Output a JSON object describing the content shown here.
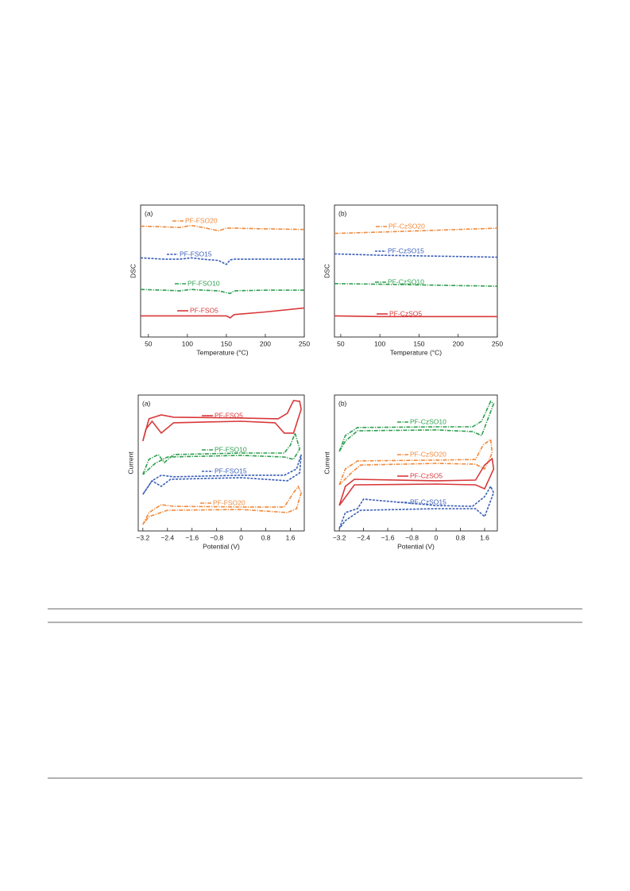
{
  "chart_data": [
    {
      "type": "line",
      "panel_label": "(a)",
      "xlabel": "Temperature (°C)",
      "ylabel": "DSC",
      "xlim": [
        40,
        250
      ],
      "ylim": [
        0,
        100
      ],
      "xticks": [
        50,
        100,
        150,
        200,
        250
      ],
      "series": [
        {
          "name": "PF-FSO20",
          "color": "#f0893a",
          "dash": "dashdot",
          "x": [
            40,
            70,
            90,
            105,
            120,
            140,
            150,
            160,
            200,
            250
          ],
          "values": [
            84,
            83.5,
            83,
            84.5,
            83,
            80.5,
            82.5,
            82.5,
            82,
            81.5
          ]
        },
        {
          "name": "PF-FSO15",
          "color": "#3a5fb8",
          "dash": "dashed",
          "x": [
            40,
            70,
            90,
            105,
            120,
            140,
            150,
            155,
            160,
            200,
            250
          ],
          "values": [
            60,
            59,
            59,
            60,
            59,
            58,
            55,
            58.5,
            59,
            59,
            59
          ]
        },
        {
          "name": "PF-FSO10",
          "color": "#2e9e4f",
          "dash": "dashdot",
          "x": [
            40,
            70,
            90,
            105,
            120,
            140,
            155,
            160,
            200,
            250
          ],
          "values": [
            36,
            35.5,
            35,
            36,
            35.5,
            35,
            33,
            35,
            35.5,
            35.5
          ]
        },
        {
          "name": "PF-FSO5",
          "color": "#d9383a",
          "dash": "solid",
          "x": [
            40,
            70,
            100,
            130,
            150,
            155,
            160,
            200,
            250
          ],
          "values": [
            16,
            16,
            16,
            16,
            16,
            14.5,
            17,
            19,
            22
          ]
        }
      ]
    },
    {
      "type": "line",
      "panel_label": "(b)",
      "xlabel": "Temperature (°C)",
      "ylabel": "DSC",
      "xlim": [
        42,
        250
      ],
      "ylim": [
        0,
        100
      ],
      "xticks": [
        50,
        100,
        150,
        200,
        250
      ],
      "series": [
        {
          "name": "PF-CzSO20",
          "color": "#f0893a",
          "dash": "dashdot",
          "x": [
            42,
            100,
            150,
            200,
            250
          ],
          "values": [
            78.5,
            79.5,
            80.5,
            81.5,
            82.5
          ]
        },
        {
          "name": "PF-CzSO15",
          "color": "#3a5fb8",
          "dash": "dashed",
          "x": [
            42,
            100,
            150,
            200,
            250
          ],
          "values": [
            63,
            62,
            61.5,
            61,
            60.5
          ]
        },
        {
          "name": "PF-CzSO10",
          "color": "#2e9e4f",
          "dash": "dashdot",
          "x": [
            42,
            100,
            150,
            200,
            250
          ],
          "values": [
            40.5,
            40,
            39.5,
            39,
            38.5
          ]
        },
        {
          "name": "PF-CzSO5",
          "color": "#d9383a",
          "dash": "solid",
          "x": [
            42,
            100,
            150,
            200,
            250
          ],
          "values": [
            16,
            15.5,
            15.5,
            15.5,
            15.5
          ]
        }
      ]
    },
    {
      "type": "line",
      "panel_label": "(a)",
      "xlabel": "Potential (V)",
      "ylabel": "Current",
      "xlim": [
        -3.35,
        2.05
      ],
      "ylim": [
        0,
        100
      ],
      "xticks": [
        {
          "value": -3.2,
          "label": "−3.2"
        },
        {
          "value": -2.4,
          "label": "−2.4"
        },
        {
          "value": -1.6,
          "label": "−1.6"
        },
        {
          "value": -0.8,
          "label": "−0.8"
        },
        0,
        0.8,
        1.6
      ],
      "series": [
        {
          "name": "PF-FSO5",
          "color": "#d9383a",
          "dash": "solid",
          "x": [
            -3.2,
            -3.0,
            -2.6,
            -2.2,
            0,
            1.2,
            1.5,
            1.7,
            1.9,
            1.95,
            1.7,
            1.4,
            1.1,
            0,
            -2.2,
            -2.6,
            -2.9,
            -3.1,
            -3.2
          ],
          "values": [
            66.1,
            82.5,
            85.4,
            83.7,
            83.1,
            82.5,
            86.6,
            95.9,
            95.4,
            89.5,
            72.0,
            72.0,
            79.6,
            80.7,
            79.6,
            72.0,
            80.7,
            74.9,
            66.1
          ]
        },
        {
          "name": "PF-FSO10",
          "color": "#2e9e4f",
          "dash": "dashdot",
          "x": [
            -3.2,
            -3.0,
            -2.7,
            -2.5,
            -2.2,
            0,
            1.4,
            1.6,
            1.75,
            1.9,
            1.7,
            1.4,
            0,
            -2.4,
            -2.8,
            -3.2
          ],
          "values": [
            41.5,
            52.7,
            56.2,
            50.3,
            56.2,
            57.3,
            57.3,
            63.2,
            72.0,
            60.3,
            52.7,
            54.4,
            55.6,
            54.4,
            49.7,
            41.5
          ]
        },
        {
          "name": "PF-FSO15",
          "color": "#3a5fb8",
          "dash": "dashed",
          "x": [
            -3.2,
            -2.9,
            -2.6,
            -2.2,
            0,
            1.4,
            1.8,
            1.95,
            1.9,
            1.5,
            0,
            -2.3,
            -2.6,
            -2.9,
            -3.2
          ],
          "values": [
            26.9,
            36.9,
            41.0,
            39.8,
            41.0,
            41.0,
            45.6,
            56.2,
            42.7,
            36.9,
            39.2,
            38.0,
            32.8,
            36.9,
            26.9
          ]
        },
        {
          "name": "PF-FSO20",
          "color": "#f0893a",
          "dash": "dashdot",
          "x": [
            -3.2,
            -3.0,
            -2.6,
            -2.2,
            0,
            1.4,
            1.7,
            1.85,
            1.95,
            1.8,
            1.5,
            0,
            -2.4,
            -3.0,
            -3.2
          ],
          "values": [
            4.7,
            13.5,
            19.3,
            18.1,
            17.6,
            17.6,
            28.1,
            32.8,
            28.1,
            16.4,
            13.5,
            15.8,
            15.2,
            10.5,
            4.7
          ]
        }
      ]
    },
    {
      "type": "line",
      "panel_label": "(b)",
      "xlabel": "Potential (V)",
      "ylabel": "Current",
      "xlim": [
        -3.36,
        2.02
      ],
      "ylim": [
        0,
        100
      ],
      "xticks": [
        {
          "value": -3.2,
          "label": "−3.2"
        },
        {
          "value": -2.4,
          "label": "−2.4"
        },
        {
          "value": -1.6,
          "label": "−1.6"
        },
        {
          "value": -0.8,
          "label": "−0.8"
        },
        0,
        0.8,
        1.6
      ],
      "series": [
        {
          "name": "PF-CzSO10",
          "color": "#2e9e4f",
          "dash": "dashdot",
          "x": [
            -3.2,
            -3.0,
            -2.6,
            0,
            1.2,
            1.5,
            1.8,
            1.9,
            1.5,
            1.2,
            0,
            -2.6,
            -3.0,
            -3.2
          ],
          "values": [
            58.5,
            70.2,
            76.1,
            76.6,
            76.6,
            80.7,
            95.4,
            93.6,
            70.2,
            73.1,
            74.3,
            73.7,
            66.1,
            58.5
          ]
        },
        {
          "name": "PF-CzSO20",
          "color": "#f0893a",
          "dash": "dashdot",
          "x": [
            -3.2,
            -3.0,
            -2.6,
            0,
            1.3,
            1.55,
            1.8,
            1.85,
            1.6,
            1.3,
            0,
            -2.5,
            -2.8,
            -3.2
          ],
          "values": [
            33.9,
            45.6,
            51.5,
            52.1,
            52.6,
            63.2,
            67.3,
            57.3,
            45.6,
            49.1,
            49.7,
            48.5,
            42.7,
            33.9
          ]
        },
        {
          "name": "PF-CzSO5",
          "color": "#d9383a",
          "dash": "solid",
          "x": [
            -3.2,
            -3.0,
            -2.7,
            0,
            1.3,
            1.6,
            1.85,
            1.9,
            1.6,
            1.3,
            0,
            -2.7,
            -3.2
          ],
          "values": [
            18.7,
            32.8,
            38.0,
            36.9,
            37.4,
            48.5,
            53.2,
            45.6,
            31.0,
            33.9,
            34.5,
            33.9,
            18.7
          ]
        },
        {
          "name": "PF-CzSO15",
          "color": "#3a5fb8",
          "dash": "dashed",
          "x": [
            -3.2,
            -3.0,
            -2.6,
            -2.4,
            0,
            1.2,
            1.6,
            1.8,
            1.9,
            1.6,
            1.3,
            0,
            -2.5,
            -3.0,
            -3.2
          ],
          "values": [
            1.8,
            13.5,
            16.4,
            23.4,
            18.7,
            18.1,
            25.2,
            32.8,
            28.1,
            10.5,
            16.4,
            16.4,
            15.2,
            7.6,
            1.8
          ]
        }
      ]
    }
  ]
}
